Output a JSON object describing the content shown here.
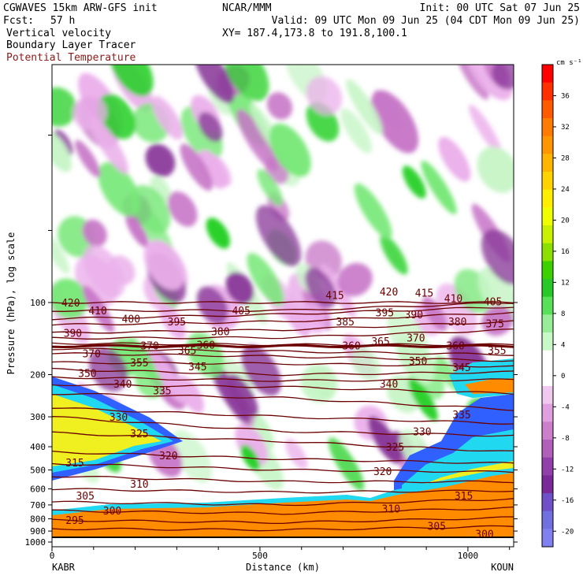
{
  "header": {
    "model_line": "CGWAVES 15km ARW-GFS init",
    "org": "NCAR/MMM",
    "init": "Init: 00 UTC Sat 07 Jun 25",
    "fcst_label": "Fcst:",
    "fcst_value": "57 h",
    "valid": "Valid: 09 UTC Mon 09 Jun 25 (04 CDT Mon 09 Jun 25)",
    "xy": "XY= 187.4,173.8 to 191.8,100.1",
    "field1": "Vertical velocity",
    "field2": "Boundary Layer Tracer",
    "field3": "Potential Temperature"
  },
  "colors": {
    "theta_contour": "#6b0000",
    "theta_label": "#8b1a1a",
    "ground": "#ff8c00",
    "tracer_blue": "#3060ff",
    "tracer_cyan": "#20d8f0",
    "tracer_yellow": "#f0f020",
    "up_light": "#c8f5c8",
    "up_mid": "#78e878",
    "up_strong": "#28d028",
    "down_light": "#ebb0eb",
    "down_mid": "#c878c8",
    "down_strong": "#8a3a9a"
  },
  "chart_data": {
    "type": "heatmap",
    "title": "Vertical velocity / Boundary Layer Tracer / Potential Temperature cross-section",
    "xlabel": "Distance (km)",
    "ylabel": "Pressure (hPa), log scale",
    "xlim": [
      0,
      1110
    ],
    "ylim_hpa": [
      1000,
      10
    ],
    "y_scale": "log",
    "x_ticks": [
      "0",
      "500",
      "1000"
    ],
    "x_tick_values": [
      0,
      500,
      1000
    ],
    "endpoints": {
      "left": "KABR",
      "right": "KOUN"
    },
    "y_ticks": [
      "100",
      "200",
      "300",
      "400",
      "500",
      "600",
      "700",
      "800",
      "900",
      "1000"
    ],
    "y_tick_values": [
      100,
      200,
      300,
      400,
      500,
      600,
      700,
      800,
      900,
      1000
    ],
    "colorbar": {
      "units": "cm s⁻¹",
      "tick_labels": [
        "36",
        "32",
        "28",
        "24",
        "20",
        "16",
        "12",
        "8",
        "4",
        "0",
        "-4",
        "-8",
        "-12",
        "-16",
        "-20"
      ],
      "tick_values": [
        36,
        32,
        28,
        24,
        20,
        16,
        12,
        8,
        4,
        0,
        -4,
        -8,
        -12,
        -16,
        -20
      ],
      "colors": [
        "#ff0000",
        "#ff3000",
        "#ff5a00",
        "#ff7a00",
        "#ff9600",
        "#ffb400",
        "#ffd200",
        "#ffee00",
        "#f0ff00",
        "#c8f000",
        "#8ce000",
        "#3cd000",
        "#28c828",
        "#58e058",
        "#98ee98",
        "#c8f8c8",
        "#ffffff",
        "#ffffff",
        "#f0c8f0",
        "#e0a0e0",
        "#cc80cc",
        "#b060b8",
        "#9040a8",
        "#7a2a98",
        "#7050c8",
        "#7070e0",
        "#8080f0"
      ]
    },
    "theta_contours": [
      {
        "value": 295,
        "label": "295"
      },
      {
        "value": 300,
        "label": "300"
      },
      {
        "value": 305,
        "label": "305"
      },
      {
        "value": 310,
        "label": "310"
      },
      {
        "value": 315,
        "label": "315"
      },
      {
        "value": 320,
        "label": "320"
      },
      {
        "value": 325,
        "label": "325"
      },
      {
        "value": 330,
        "label": "330"
      },
      {
        "value": 335,
        "label": "335"
      },
      {
        "value": 340,
        "label": "340"
      },
      {
        "value": 345,
        "label": "345"
      },
      {
        "value": 350,
        "label": "350"
      },
      {
        "value": 355,
        "label": "355"
      },
      {
        "value": 360,
        "label": "360"
      },
      {
        "value": 365,
        "label": "365"
      },
      {
        "value": 370,
        "label": "370"
      },
      {
        "value": 375,
        "label": "375"
      },
      {
        "value": 380,
        "label": "380"
      },
      {
        "value": 385,
        "label": "385"
      },
      {
        "value": 390,
        "label": "390"
      },
      {
        "value": 395,
        "label": "395"
      },
      {
        "value": 400,
        "label": "400"
      },
      {
        "value": 405,
        "label": "405"
      },
      {
        "value": 410,
        "label": "410"
      },
      {
        "value": 415,
        "label": "415"
      },
      {
        "value": 420,
        "label": "420"
      }
    ],
    "theta_labels": [
      {
        "text": "420",
        "x_km": 45,
        "p_hpa": 100
      },
      {
        "text": "410",
        "x_km": 110,
        "p_hpa": 108
      },
      {
        "text": "400",
        "x_km": 190,
        "p_hpa": 117
      },
      {
        "text": "395",
        "x_km": 300,
        "p_hpa": 120
      },
      {
        "text": "405",
        "x_km": 455,
        "p_hpa": 108
      },
      {
        "text": "390",
        "x_km": 50,
        "p_hpa": 134
      },
      {
        "text": "380",
        "x_km": 405,
        "p_hpa": 132
      },
      {
        "text": "415",
        "x_km": 680,
        "p_hpa": 93
      },
      {
        "text": "420",
        "x_km": 810,
        "p_hpa": 90
      },
      {
        "text": "415",
        "x_km": 895,
        "p_hpa": 91
      },
      {
        "text": "410",
        "x_km": 965,
        "p_hpa": 96
      },
      {
        "text": "405",
        "x_km": 1060,
        "p_hpa": 99
      },
      {
        "text": "385",
        "x_km": 705,
        "p_hpa": 120
      },
      {
        "text": "395",
        "x_km": 800,
        "p_hpa": 110
      },
      {
        "text": "390",
        "x_km": 870,
        "p_hpa": 112
      },
      {
        "text": "380",
        "x_km": 975,
        "p_hpa": 120
      },
      {
        "text": "375",
        "x_km": 1065,
        "p_hpa": 122
      },
      {
        "text": "365",
        "x_km": 790,
        "p_hpa": 145
      },
      {
        "text": "370",
        "x_km": 875,
        "p_hpa": 140
      },
      {
        "text": "370",
        "x_km": 235,
        "p_hpa": 151
      },
      {
        "text": "360",
        "x_km": 370,
        "p_hpa": 150
      },
      {
        "text": "365",
        "x_km": 325,
        "p_hpa": 158
      },
      {
        "text": "360",
        "x_km": 720,
        "p_hpa": 151
      },
      {
        "text": "360",
        "x_km": 970,
        "p_hpa": 151
      },
      {
        "text": "355",
        "x_km": 1070,
        "p_hpa": 158
      },
      {
        "text": "370",
        "x_km": 95,
        "p_hpa": 163
      },
      {
        "text": "355",
        "x_km": 210,
        "p_hpa": 178
      },
      {
        "text": "345",
        "x_km": 350,
        "p_hpa": 185
      },
      {
        "text": "350",
        "x_km": 880,
        "p_hpa": 175
      },
      {
        "text": "345",
        "x_km": 985,
        "p_hpa": 186
      },
      {
        "text": "350",
        "x_km": 85,
        "p_hpa": 197
      },
      {
        "text": "340",
        "x_km": 170,
        "p_hpa": 218
      },
      {
        "text": "335",
        "x_km": 265,
        "p_hpa": 233
      },
      {
        "text": "340",
        "x_km": 810,
        "p_hpa": 218
      },
      {
        "text": "330",
        "x_km": 160,
        "p_hpa": 300
      },
      {
        "text": "325",
        "x_km": 210,
        "p_hpa": 352
      },
      {
        "text": "330",
        "x_km": 890,
        "p_hpa": 345
      },
      {
        "text": "335",
        "x_km": 985,
        "p_hpa": 293
      },
      {
        "text": "320",
        "x_km": 280,
        "p_hpa": 435
      },
      {
        "text": "325",
        "x_km": 825,
        "p_hpa": 400
      },
      {
        "text": "315",
        "x_km": 55,
        "p_hpa": 465
      },
      {
        "text": "320",
        "x_km": 795,
        "p_hpa": 505
      },
      {
        "text": "310",
        "x_km": 210,
        "p_hpa": 570
      },
      {
        "text": "305",
        "x_km": 80,
        "p_hpa": 640
      },
      {
        "text": "315",
        "x_km": 990,
        "p_hpa": 640
      },
      {
        "text": "300",
        "x_km": 145,
        "p_hpa": 740
      },
      {
        "text": "310",
        "x_km": 815,
        "p_hpa": 725
      },
      {
        "text": "295",
        "x_km": 55,
        "p_hpa": 810
      },
      {
        "text": "305",
        "x_km": 925,
        "p_hpa": 855
      },
      {
        "text": "300",
        "x_km": 1040,
        "p_hpa": 925
      }
    ],
    "grid": false,
    "legend": "right colorbar"
  }
}
